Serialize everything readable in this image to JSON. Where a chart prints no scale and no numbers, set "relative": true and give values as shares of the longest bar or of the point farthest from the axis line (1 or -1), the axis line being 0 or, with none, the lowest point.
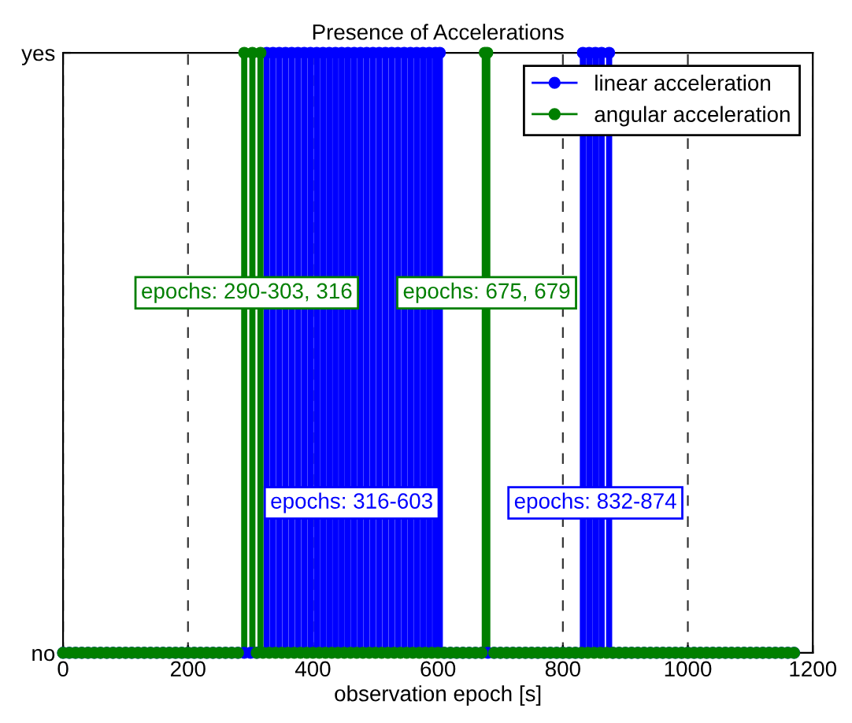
{
  "chart_data": {
    "type": "lollipop",
    "title": "Presence of Accelerations",
    "xlabel": "observation epoch [s]",
    "xlim": [
      0,
      1200
    ],
    "xticks": [
      0,
      200,
      400,
      600,
      800,
      1000,
      1200
    ],
    "relative": true,
    "y_categories": [
      "yes",
      "no"
    ],
    "grid": "x",
    "legend": "top right",
    "marker": "circle",
    "series": [
      {
        "name": "linear acceleration",
        "color": "#0000ff",
        "x": [
          0,
          10,
          20,
          30,
          40,
          50,
          60,
          70,
          80,
          90,
          100,
          110,
          120,
          130,
          140,
          150,
          160,
          170,
          180,
          190,
          200,
          210,
          220,
          230,
          240,
          250,
          260,
          270,
          280,
          290,
          300,
          310,
          326,
          336,
          346,
          356,
          366,
          376,
          386,
          396,
          406,
          416,
          426,
          436,
          446,
          456,
          466,
          476,
          486,
          496,
          506,
          516,
          526,
          536,
          546,
          556,
          566,
          576,
          586,
          596,
          603,
          610,
          620,
          630,
          640,
          650,
          660,
          670,
          680,
          690,
          700,
          710,
          720,
          730,
          740,
          750,
          760,
          770,
          780,
          790,
          800,
          810,
          820,
          830,
          832,
          842,
          852,
          862,
          874,
          880,
          890,
          900,
          910,
          920,
          930,
          940,
          950,
          960,
          970,
          980,
          990,
          1000,
          1010,
          1020,
          1030,
          1040,
          1050,
          1060,
          1070,
          1080,
          1090,
          1100,
          1110,
          1120,
          1130,
          1140,
          1150,
          1160,
          1170
        ],
        "values": [
          0,
          0,
          0,
          0,
          0,
          0,
          0,
          0,
          0,
          0,
          0,
          0,
          0,
          0,
          0,
          0,
          0,
          0,
          0,
          0,
          0,
          0,
          0,
          0,
          0,
          0,
          0,
          0,
          0,
          0,
          0,
          0,
          1,
          1,
          1,
          1,
          1,
          1,
          1,
          1,
          1,
          1,
          1,
          1,
          1,
          1,
          1,
          1,
          1,
          1,
          1,
          1,
          1,
          1,
          1,
          1,
          1,
          1,
          1,
          1,
          1,
          0,
          0,
          0,
          0,
          0,
          0,
          0,
          0,
          0,
          0,
          0,
          0,
          0,
          0,
          0,
          0,
          0,
          0,
          0,
          0,
          0,
          0,
          0,
          1,
          1,
          1,
          1,
          1,
          0,
          0,
          0,
          0,
          0,
          0,
          0,
          0,
          0,
          0,
          0,
          0,
          0,
          0,
          0,
          0,
          0,
          0,
          0,
          0,
          0,
          0,
          0,
          0,
          0,
          0,
          0,
          0,
          0,
          0
        ]
      },
      {
        "name": "angular acceleration",
        "color": "#007f00",
        "x": [
          0,
          10,
          20,
          30,
          40,
          50,
          60,
          70,
          80,
          90,
          100,
          110,
          120,
          130,
          140,
          150,
          160,
          170,
          180,
          190,
          200,
          210,
          220,
          230,
          240,
          250,
          260,
          270,
          280,
          290,
          303,
          310,
          316,
          320,
          330,
          340,
          350,
          360,
          370,
          380,
          390,
          400,
          410,
          420,
          430,
          440,
          450,
          460,
          470,
          480,
          490,
          500,
          510,
          520,
          530,
          540,
          550,
          560,
          570,
          580,
          590,
          600,
          610,
          620,
          630,
          640,
          650,
          660,
          670,
          675,
          679,
          690,
          700,
          710,
          720,
          730,
          740,
          750,
          760,
          770,
          780,
          790,
          800,
          810,
          820,
          830,
          840,
          850,
          860,
          870,
          880,
          890,
          900,
          910,
          920,
          930,
          940,
          950,
          960,
          970,
          980,
          990,
          1000,
          1010,
          1020,
          1030,
          1040,
          1050,
          1060,
          1070,
          1080,
          1090,
          1100,
          1110,
          1120,
          1130,
          1140,
          1150,
          1160,
          1170
        ],
        "values": [
          0,
          0,
          0,
          0,
          0,
          0,
          0,
          0,
          0,
          0,
          0,
          0,
          0,
          0,
          0,
          0,
          0,
          0,
          0,
          0,
          0,
          0,
          0,
          0,
          0,
          0,
          0,
          0,
          0,
          1,
          1,
          0,
          1,
          0,
          0,
          0,
          0,
          0,
          0,
          0,
          0,
          0,
          0,
          0,
          0,
          0,
          0,
          0,
          0,
          0,
          0,
          0,
          0,
          0,
          0,
          0,
          0,
          0,
          0,
          0,
          0,
          0,
          0,
          0,
          0,
          0,
          0,
          0,
          0,
          1,
          1,
          0,
          0,
          0,
          0,
          0,
          0,
          0,
          0,
          0,
          0,
          0,
          0,
          0,
          0,
          0,
          0,
          0,
          0,
          0,
          0,
          0,
          0,
          0,
          0,
          0,
          0,
          0,
          0,
          0,
          0,
          0,
          0,
          0,
          0,
          0,
          0,
          0,
          0,
          0,
          0,
          0,
          0,
          0,
          0,
          0,
          0,
          0,
          0,
          0
        ]
      }
    ],
    "annotations": [
      "epochs: 290-303, 316",
      "epochs: 675, 679",
      "epochs: 316-603",
      "epochs: 832-874"
    ]
  }
}
